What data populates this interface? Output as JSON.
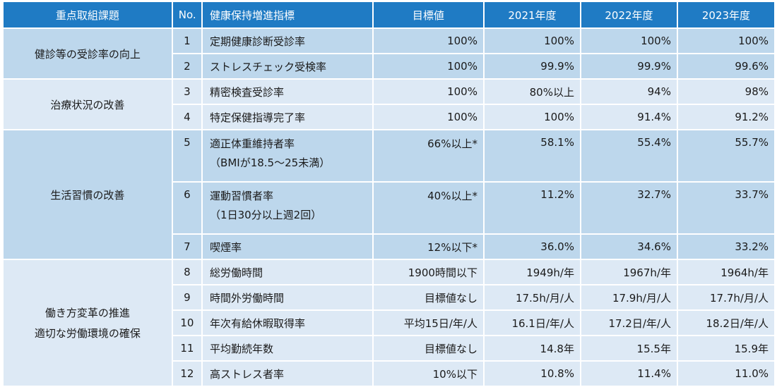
{
  "headers": {
    "category": "重点取組課題",
    "no": "No.",
    "indicator": "健康保持増進指標",
    "target": "目標値",
    "y2021": "2021年度",
    "y2022": "2022年度",
    "y2023": "2023年度"
  },
  "groups": [
    {
      "category": "健診等の受診率の向上",
      "rows": [
        {
          "no": "1",
          "indicator": "定期健康診断受診率",
          "sub": "",
          "target": "100%",
          "y2021": "100%",
          "y2022": "100%",
          "y2023": "100%"
        },
        {
          "no": "2",
          "indicator": "ストレスチェック受検率",
          "sub": "",
          "target": "100%",
          "y2021": "99.9%",
          "y2022": "99.9%",
          "y2023": "99.6%"
        }
      ]
    },
    {
      "category": "治療状況の改善",
      "rows": [
        {
          "no": "3",
          "indicator": "精密検査受診率",
          "sub": "",
          "target": "100%",
          "y2021": "80%以上",
          "y2022": "94%",
          "y2023": "98%"
        },
        {
          "no": "4",
          "indicator": "特定保健指導完了率",
          "sub": "",
          "target": "100%",
          "y2021": "100%",
          "y2022": "91.4%",
          "y2023": "91.2%"
        }
      ]
    },
    {
      "category": "生活習慣の改善",
      "rows": [
        {
          "no": "5",
          "indicator": "適正体重維持者率",
          "sub": "（BMIが18.5〜25未満）",
          "target": "66%以上*",
          "y2021": "58.1%",
          "y2022": "55.4%",
          "y2023": "55.7%"
        },
        {
          "no": "6",
          "indicator": "運動習慣者率",
          "sub": "（1日30分以上週2回）",
          "target": "40%以上*",
          "y2021": "11.2%",
          "y2022": "32.7%",
          "y2023": "33.7%"
        },
        {
          "no": "7",
          "indicator": "喫煙率",
          "sub": "",
          "target": "12%以下*",
          "y2021": "36.0%",
          "y2022": "34.6%",
          "y2023": "33.2%"
        }
      ]
    },
    {
      "category_line1": "働き方変革の推進",
      "category_line2": "適切な労働環境の確保",
      "rows": [
        {
          "no": "8",
          "indicator": "総労働時間",
          "sub": "",
          "target": "1900時間以下",
          "y2021": "1949h/年",
          "y2022": "1967h/年",
          "y2023": "1964h/年"
        },
        {
          "no": "9",
          "indicator": "時間外労働時間",
          "sub": "",
          "target": "目標値なし",
          "y2021": "17.5h/月/人",
          "y2022": "17.9h/月/人",
          "y2023": "17.7h/月/人"
        },
        {
          "no": "10",
          "indicator": "年次有給休暇取得率",
          "sub": "",
          "target": "平均15日/年/人",
          "y2021": "16.1日/年/人",
          "y2022": "17.2日/年/人",
          "y2023": "18.2日/年/人"
        },
        {
          "no": "11",
          "indicator": "平均勤続年数",
          "sub": "",
          "target": "目標値なし",
          "y2021": "14.8年",
          "y2022": "15.5年",
          "y2023": "15.9年"
        },
        {
          "no": "12",
          "indicator": "高ストレス者率",
          "sub": "",
          "target": "10%以下",
          "y2021": "10.8%",
          "y2022": "11.4%",
          "y2023": "11.0%"
        }
      ]
    }
  ]
}
